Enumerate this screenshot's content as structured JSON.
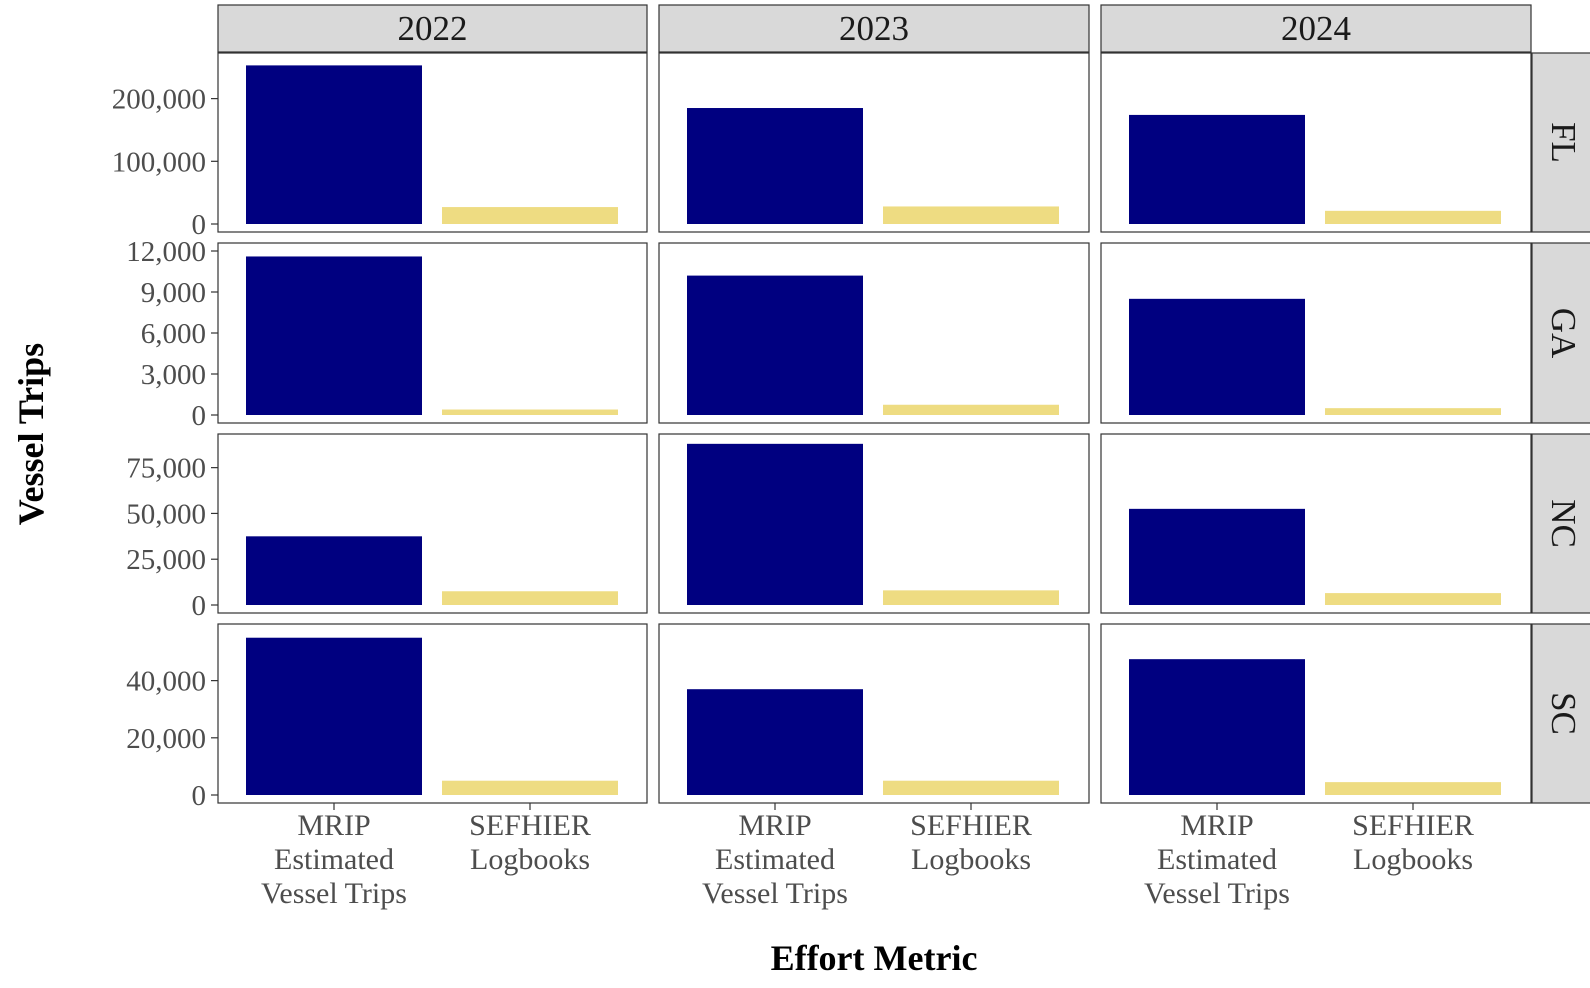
{
  "chart_data": {
    "type": "bar",
    "xlabel": "Effort Metric",
    "ylabel": "Vessel Trips",
    "columns": [
      "2022",
      "2023",
      "2024"
    ],
    "rows": [
      "FL",
      "GA",
      "NC",
      "SC"
    ],
    "categories": [
      [
        "MRIP",
        "Estimated",
        "Vessel Trips"
      ],
      [
        "SEFHIER",
        "Logbooks"
      ]
    ],
    "colors": [
      "#000080",
      "#EEDC82"
    ],
    "grid": false,
    "panels": {
      "FL": {
        "ylim": [
          0,
          260000
        ],
        "yticks": [
          0,
          100000,
          200000
        ],
        "ytick_labels": [
          "0",
          "100,000",
          "200,000"
        ],
        "values": {
          "2022": [
            253000,
            27000
          ],
          "2023": [
            185000,
            28000
          ],
          "2024": [
            174000,
            21000
          ]
        }
      },
      "GA": {
        "ylim": [
          0,
          12000
        ],
        "yticks": [
          0,
          3000,
          6000,
          9000,
          12000
        ],
        "ytick_labels": [
          "0",
          "3,000",
          "6,000",
          "9,000",
          "12,000"
        ],
        "values": {
          "2022": [
            11600,
            400
          ],
          "2023": [
            10200,
            750
          ],
          "2024": [
            8500,
            500
          ]
        }
      },
      "NC": {
        "ylim": [
          0,
          89000
        ],
        "yticks": [
          0,
          25000,
          50000,
          75000
        ],
        "ytick_labels": [
          "0",
          "25,000",
          "50,000",
          "75,000"
        ],
        "values": {
          "2022": [
            37500,
            7500
          ],
          "2023": [
            88000,
            8000
          ],
          "2024": [
            52500,
            6500
          ]
        }
      },
      "SC": {
        "ylim": [
          0,
          57000
        ],
        "yticks": [
          0,
          20000,
          40000
        ],
        "ytick_labels": [
          "0",
          "20,000",
          "40,000"
        ],
        "values": {
          "2022": [
            55000,
            5000
          ],
          "2023": [
            37000,
            5000
          ],
          "2024": [
            47500,
            4500
          ]
        }
      }
    }
  }
}
